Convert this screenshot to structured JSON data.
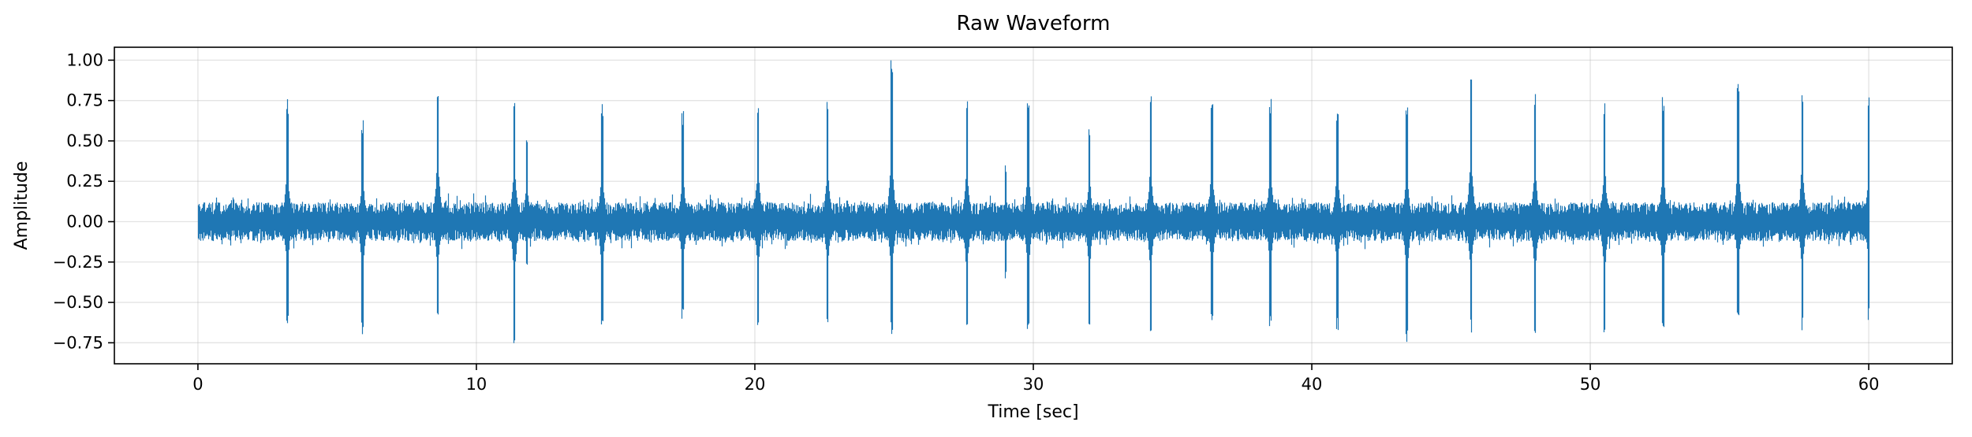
{
  "chart_data": {
    "type": "line",
    "title": "Raw Waveform",
    "xlabel": "Time [sec]",
    "ylabel": "Amplitude",
    "xlim": [
      -3,
      63
    ],
    "ylim": [
      -0.88,
      1.08
    ],
    "xticks": [
      0,
      10,
      20,
      30,
      40,
      50,
      60
    ],
    "xtick_labels": [
      "0",
      "10",
      "20",
      "30",
      "40",
      "50",
      "60"
    ],
    "yticks": [
      -0.75,
      -0.5,
      -0.25,
      0.0,
      0.25,
      0.5,
      0.75,
      1.0
    ],
    "ytick_labels": [
      "−0.75",
      "−0.50",
      "−0.25",
      "0.00",
      "0.25",
      "0.50",
      "0.75",
      "1.00"
    ],
    "grid": true,
    "series": [
      {
        "color": "#1f77b4",
        "duration_sec": 60,
        "baseline_amplitude": 0.12,
        "peaks": [
          {
            "t": 3.2,
            "max": 0.78,
            "min": -0.66
          },
          {
            "t": 5.9,
            "max": 0.63,
            "min": -0.7
          },
          {
            "t": 8.6,
            "max": 0.9,
            "min": -0.66
          },
          {
            "t": 11.35,
            "max": 0.8,
            "min": -0.79
          },
          {
            "t": 11.8,
            "max": 0.55,
            "min": -0.3
          },
          {
            "t": 14.5,
            "max": 0.74,
            "min": -0.69
          },
          {
            "t": 17.4,
            "max": 0.7,
            "min": -0.62
          },
          {
            "t": 20.1,
            "max": 0.79,
            "min": -0.66
          },
          {
            "t": 22.6,
            "max": 0.78,
            "min": -0.64
          },
          {
            "t": 24.9,
            "max": 1.0,
            "min": -0.73
          },
          {
            "t": 27.6,
            "max": 0.78,
            "min": -0.68
          },
          {
            "t": 29.0,
            "max": 0.35,
            "min": -0.36
          },
          {
            "t": 29.8,
            "max": 0.75,
            "min": -0.72
          },
          {
            "t": 32.0,
            "max": 0.62,
            "min": -0.65
          },
          {
            "t": 34.2,
            "max": 0.8,
            "min": -0.7
          },
          {
            "t": 36.4,
            "max": 0.8,
            "min": -0.66
          },
          {
            "t": 38.5,
            "max": 0.78,
            "min": -0.65
          },
          {
            "t": 40.9,
            "max": 0.73,
            "min": -0.69
          },
          {
            "t": 43.4,
            "max": 0.72,
            "min": -0.79
          },
          {
            "t": 45.7,
            "max": 0.96,
            "min": -0.7
          },
          {
            "t": 48.0,
            "max": 0.8,
            "min": -0.72
          },
          {
            "t": 50.5,
            "max": 0.78,
            "min": -0.72
          },
          {
            "t": 52.6,
            "max": 0.78,
            "min": -0.73
          },
          {
            "t": 55.3,
            "max": 0.87,
            "min": -0.63
          },
          {
            "t": 57.6,
            "max": 0.82,
            "min": -0.68
          },
          {
            "t": 60.0,
            "max": 0.79,
            "min": -0.63
          }
        ]
      }
    ]
  }
}
